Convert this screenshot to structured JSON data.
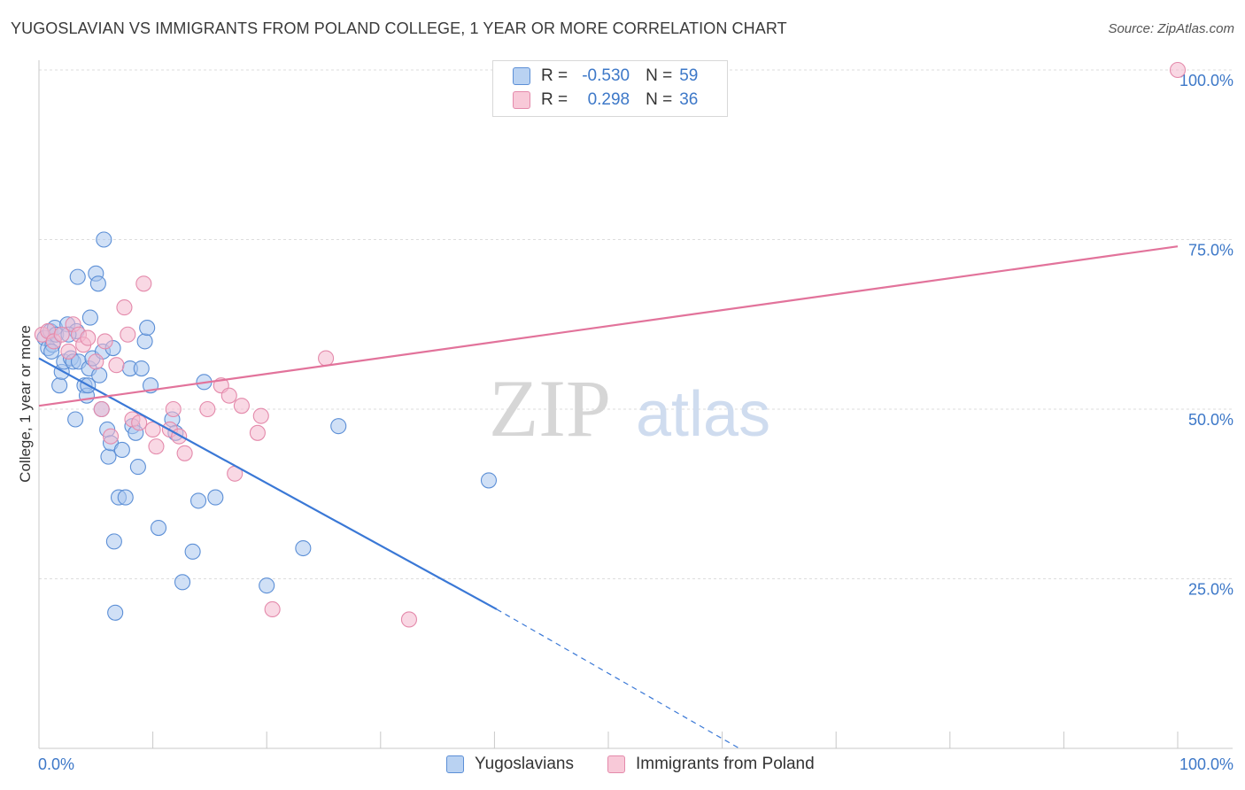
{
  "header": {
    "title": "YUGOSLAVIAN VS IMMIGRANTS FROM POLAND COLLEGE, 1 YEAR OR MORE CORRELATION CHART",
    "source": "Source: ZipAtlas.com"
  },
  "colors": {
    "blue": "#3a78d6",
    "blue_fill": "#a9c6ee",
    "pink": "#e2739b",
    "pink_fill": "#f4b8cd",
    "tick_label": "#3d78c8",
    "grid": "#dddddd"
  },
  "legend_top": {
    "rows": [
      {
        "r_label": "R =",
        "r_value": "-0.530",
        "n_label": "N =",
        "n_value": "59"
      },
      {
        "r_label": "R =",
        "r_value": "0.298",
        "n_label": "N =",
        "n_value": "36"
      }
    ]
  },
  "watermark": {
    "zip": "ZIP",
    "atlas": "atlas"
  },
  "chart_data": {
    "type": "scatter",
    "title": "YUGOSLAVIAN VS IMMIGRANTS FROM POLAND COLLEGE, 1 YEAR OR MORE CORRELATION CHART",
    "xlabel": "",
    "ylabel": "College, 1 year or more",
    "xlim": [
      0,
      100
    ],
    "ylim": [
      0,
      100
    ],
    "x_tick_labels": [
      "0.0%",
      "100.0%"
    ],
    "y_ticks": [
      {
        "value": 25,
        "label": "25.0%"
      },
      {
        "value": 50,
        "label": "50.0%"
      },
      {
        "value": 75,
        "label": "75.0%"
      },
      {
        "value": 100,
        "label": "100.0%"
      }
    ],
    "grid": true,
    "legend": "bottom-center",
    "series": [
      {
        "name": "Yugoslavians",
        "color": "#3a78d6",
        "points": [
          [
            0.5,
            60.5
          ],
          [
            0.8,
            59
          ],
          [
            1.0,
            61.5
          ],
          [
            1.2,
            59.5
          ],
          [
            1.4,
            62
          ],
          [
            1.5,
            61
          ],
          [
            1.8,
            53.5
          ],
          [
            2.0,
            55.5
          ],
          [
            2.2,
            57
          ],
          [
            2.5,
            62.5
          ],
          [
            2.8,
            57.5
          ],
          [
            3.0,
            57
          ],
          [
            3.3,
            61.5
          ],
          [
            3.5,
            57
          ],
          [
            3.2,
            48.5
          ],
          [
            3.4,
            69.5
          ],
          [
            4.0,
            53.5
          ],
          [
            4.2,
            52
          ],
          [
            4.3,
            53.5
          ],
          [
            4.4,
            56
          ],
          [
            4.5,
            63.5
          ],
          [
            4.7,
            57.5
          ],
          [
            5.0,
            70
          ],
          [
            5.2,
            68.5
          ],
          [
            5.3,
            55
          ],
          [
            5.5,
            50
          ],
          [
            5.6,
            58.5
          ],
          [
            5.7,
            75
          ],
          [
            6.0,
            47
          ],
          [
            6.1,
            43
          ],
          [
            6.3,
            45
          ],
          [
            6.5,
            59
          ],
          [
            6.6,
            30.5
          ],
          [
            6.7,
            20
          ],
          [
            7.0,
            37
          ],
          [
            7.3,
            44
          ],
          [
            7.6,
            37
          ],
          [
            8.0,
            56
          ],
          [
            8.2,
            47.5
          ],
          [
            8.5,
            46.5
          ],
          [
            8.7,
            41.5
          ],
          [
            9.0,
            56
          ],
          [
            9.3,
            60
          ],
          [
            9.5,
            62
          ],
          [
            9.8,
            53.5
          ],
          [
            10.5,
            32.5
          ],
          [
            11.7,
            48.5
          ],
          [
            12.0,
            46.5
          ],
          [
            12.6,
            24.5
          ],
          [
            13.5,
            29
          ],
          [
            14.0,
            36.5
          ],
          [
            14.5,
            54
          ],
          [
            15.5,
            37
          ],
          [
            20.0,
            24
          ],
          [
            23.2,
            29.5
          ],
          [
            26.3,
            47.5
          ],
          [
            39.5,
            39.5
          ],
          [
            1.1,
            58.5
          ],
          [
            2.6,
            61
          ]
        ],
        "trend": {
          "x_start": 0,
          "y_start": 57.5,
          "x_solid_end": 40.2,
          "y_solid_end": 20.5,
          "x_dashed_end": 61.5,
          "y_dashed_end": 0
        }
      },
      {
        "name": "Immigrants from Poland",
        "color": "#e2739b",
        "points": [
          [
            0.3,
            61
          ],
          [
            0.8,
            61.5
          ],
          [
            1.3,
            60
          ],
          [
            2.0,
            61
          ],
          [
            2.6,
            58.5
          ],
          [
            3.0,
            62.5
          ],
          [
            3.5,
            61
          ],
          [
            3.9,
            59.5
          ],
          [
            4.3,
            60.5
          ],
          [
            5.0,
            57
          ],
          [
            5.5,
            50
          ],
          [
            5.8,
            60
          ],
          [
            6.3,
            46
          ],
          [
            6.8,
            56.5
          ],
          [
            7.5,
            65
          ],
          [
            7.8,
            61
          ],
          [
            8.2,
            48.5
          ],
          [
            8.8,
            48
          ],
          [
            9.2,
            68.5
          ],
          [
            10.0,
            47
          ],
          [
            10.3,
            44.5
          ],
          [
            11.5,
            47
          ],
          [
            11.8,
            50
          ],
          [
            12.3,
            46
          ],
          [
            12.8,
            43.5
          ],
          [
            14.8,
            50
          ],
          [
            16.0,
            53.5
          ],
          [
            16.7,
            52
          ],
          [
            17.2,
            40.5
          ],
          [
            17.8,
            50.5
          ],
          [
            19.2,
            46.5
          ],
          [
            19.5,
            49
          ],
          [
            20.5,
            20.5
          ],
          [
            25.2,
            57.5
          ],
          [
            32.5,
            19
          ],
          [
            100.0,
            100.0
          ]
        ],
        "trend": {
          "x_start": 0,
          "y_start": 50.5,
          "x_end": 100,
          "y_end": 74
        }
      }
    ]
  }
}
